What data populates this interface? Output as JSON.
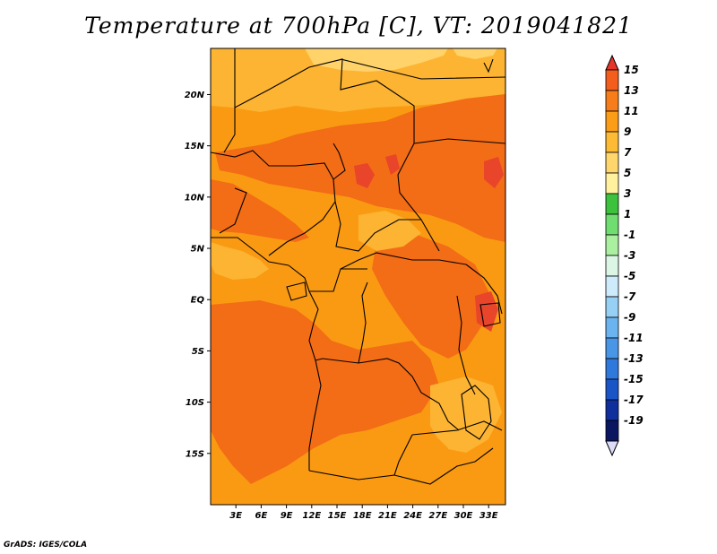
{
  "title": "Temperature at 700hPa [C], VT: 2019041821",
  "credit": "GrADS: IGES/COLA",
  "map": {
    "lon_range": [
      0,
      35
    ],
    "lat_range": [
      -20,
      24.5
    ],
    "lat_labels": [
      "20N",
      "15N",
      "10N",
      "5N",
      "EQ",
      "5S",
      "10S",
      "15S"
    ],
    "lat_values": [
      20,
      15,
      10,
      5,
      0,
      -5,
      -10,
      -15
    ],
    "lon_labels": [
      "3E",
      "6E",
      "9E",
      "12E",
      "15E",
      "18E",
      "21E",
      "24E",
      "27E",
      "30E",
      "33E"
    ],
    "lon_values": [
      3,
      6,
      9,
      12,
      15,
      18,
      21,
      24,
      27,
      30,
      33
    ]
  },
  "colorbar": {
    "labels": [
      "15",
      "13",
      "11",
      "9",
      "7",
      "5",
      "3",
      "1",
      "-1",
      "-3",
      "-5",
      "-7",
      "-9",
      "-11",
      "-13",
      "-15",
      "-17",
      "-19"
    ],
    "colors": [
      "#e8352a",
      "#f45e1d",
      "#f77d1a",
      "#fb9d17",
      "#fdba35",
      "#ffd66b",
      "#fff19d",
      "#3cc23c",
      "#6fdd6f",
      "#aaf0a0",
      "#dcf6e6",
      "#cdebfa",
      "#96d0f5",
      "#6cb4ef",
      "#4a96e6",
      "#2f78dc",
      "#1a55c8",
      "#0f2f9c",
      "#0a1660",
      "#dcdcf8"
    ]
  },
  "colors": {
    "orange_dark": "#f36c16",
    "orange_mid": "#fa9a12",
    "orange_light": "#fcb432",
    "yellow": "#ffd26a",
    "red": "#e8452a",
    "border": "#000000"
  }
}
